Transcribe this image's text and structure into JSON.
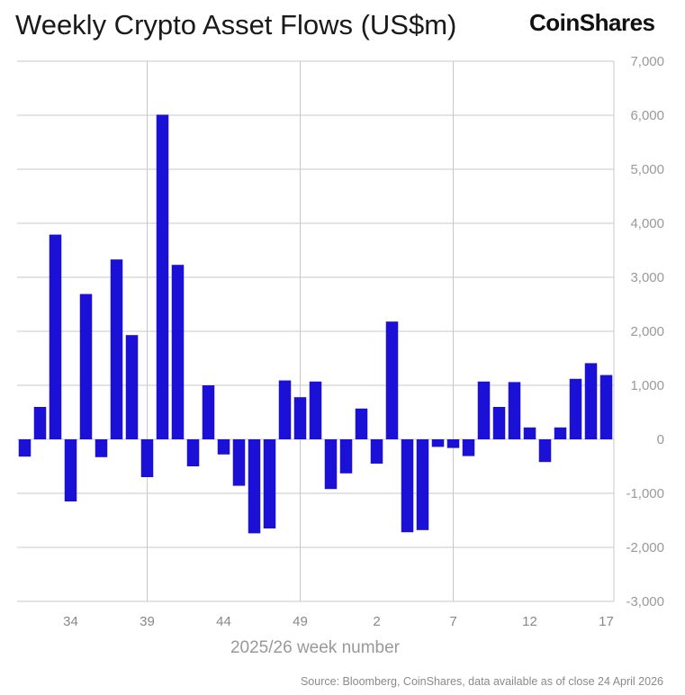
{
  "header": {
    "title": "Weekly Crypto Asset Flows (US$m)",
    "brand": "CoinShares"
  },
  "footer": {
    "source": "Source: Bloomberg, CoinShares, data available as of close 24 April 2026"
  },
  "colors": {
    "bar": "#1a10d6",
    "grid": "#c8c8c8",
    "axis_text": "#999999"
  },
  "chart_data": {
    "type": "bar",
    "title": "Weekly Crypto Asset Flows (US$m)",
    "xlabel": "2025/26 week number",
    "ylabel": "",
    "ylim": [
      -3000,
      7000
    ],
    "yticks": [
      -3000,
      -2000,
      -1000,
      0,
      1000,
      2000,
      3000,
      4000,
      5000,
      6000,
      7000
    ],
    "ytick_labels": [
      "-3,000",
      "-2,000",
      "-1,000",
      "0",
      "1,000",
      "2,000",
      "3,000",
      "4,000",
      "5,000",
      "6,000",
      "7,000"
    ],
    "xtick_labels": [
      "34",
      "39",
      "44",
      "49",
      "2",
      "7",
      "12",
      "17"
    ],
    "xtick_indices": [
      3,
      8,
      13,
      18,
      23,
      28,
      33,
      38
    ],
    "vertical_gridline_indices": [
      8.5,
      18.5,
      28.5
    ],
    "categories": [
      "31",
      "32",
      "33",
      "34",
      "35",
      "36",
      "37",
      "38",
      "39",
      "40",
      "41",
      "42",
      "43",
      "44",
      "45",
      "46",
      "47",
      "48",
      "49",
      "50",
      "51",
      "52",
      "1",
      "2",
      "3",
      "4",
      "5",
      "6",
      "7",
      "8",
      "9",
      "10",
      "11",
      "12",
      "13",
      "14",
      "15",
      "16",
      "17"
    ],
    "values": [
      -320,
      600,
      3790,
      -1150,
      2690,
      -330,
      3330,
      1930,
      -700,
      6010,
      3230,
      -500,
      1000,
      -280,
      -860,
      -1740,
      -1650,
      1090,
      780,
      1070,
      -920,
      -630,
      570,
      -450,
      2180,
      -1720,
      -1680,
      -140,
      -160,
      -310,
      1070,
      600,
      1060,
      220,
      -420,
      220,
      1120,
      1410,
      1190
    ]
  }
}
